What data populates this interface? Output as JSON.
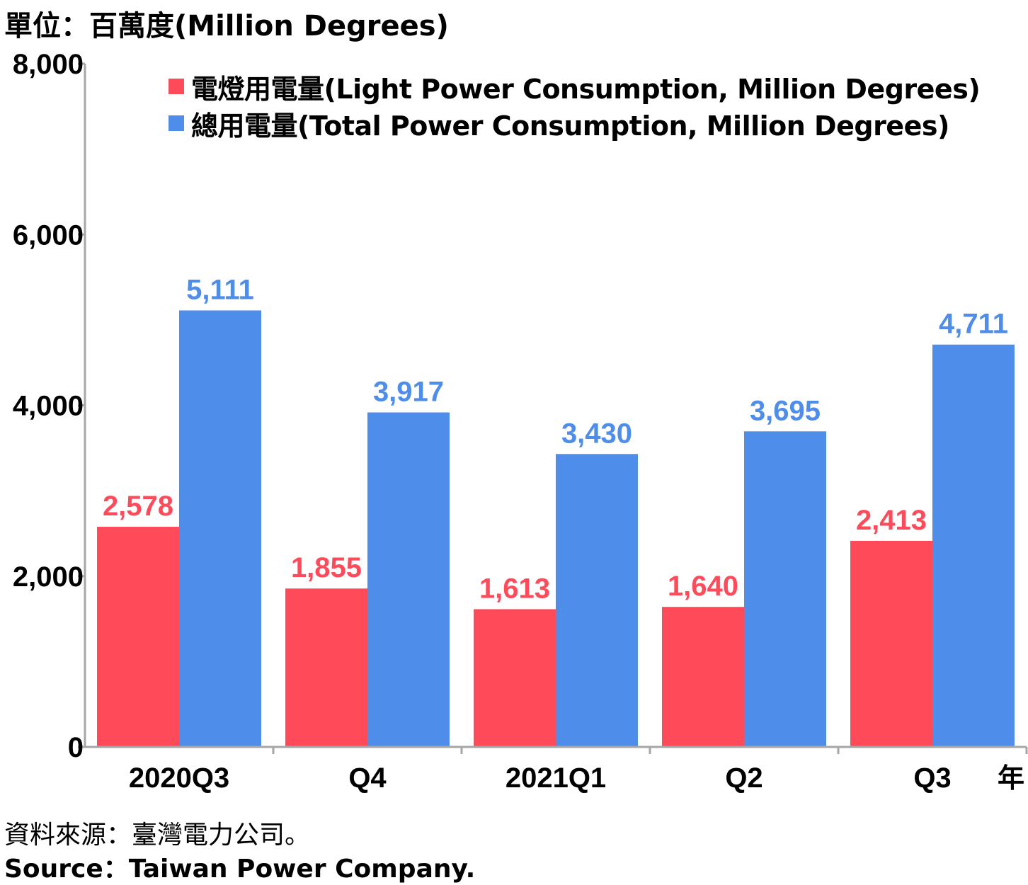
{
  "unit_label": "單位：百萬度(Million Degrees)",
  "year_suffix": "年",
  "source_zh": "資料來源：臺灣電力公司。",
  "source_en": "Source：Taiwan Power Company.",
  "colors": {
    "light": "#ff4a5a",
    "total": "#4f8dea",
    "axis": "#a6a6a6",
    "text": "#000000"
  },
  "chart_data": {
    "type": "bar",
    "categories": [
      "2020Q3",
      "Q4",
      "2021Q1",
      "Q2",
      "Q3"
    ],
    "series": [
      {
        "name": "電燈用電量(Light Power Consumption, Million Degrees)",
        "values": [
          2578,
          1855,
          1613,
          1640,
          2413
        ],
        "labels": [
          "2,578",
          "1,855",
          "1,613",
          "1,640",
          "2,413"
        ]
      },
      {
        "name": "總用電量(Total Power Consumption, Million Degrees)",
        "values": [
          5111,
          3917,
          3430,
          3695,
          4711
        ],
        "labels": [
          "5,111",
          "3,917",
          "3,430",
          "3,695",
          "4,711"
        ]
      }
    ],
    "ylim": [
      0,
      8000
    ],
    "yticks": [
      0,
      2000,
      4000,
      6000,
      8000
    ],
    "ytick_labels": [
      "0",
      "2,000",
      "4,000",
      "6,000",
      "8,000"
    ],
    "grid": false,
    "legend_position": "top"
  }
}
